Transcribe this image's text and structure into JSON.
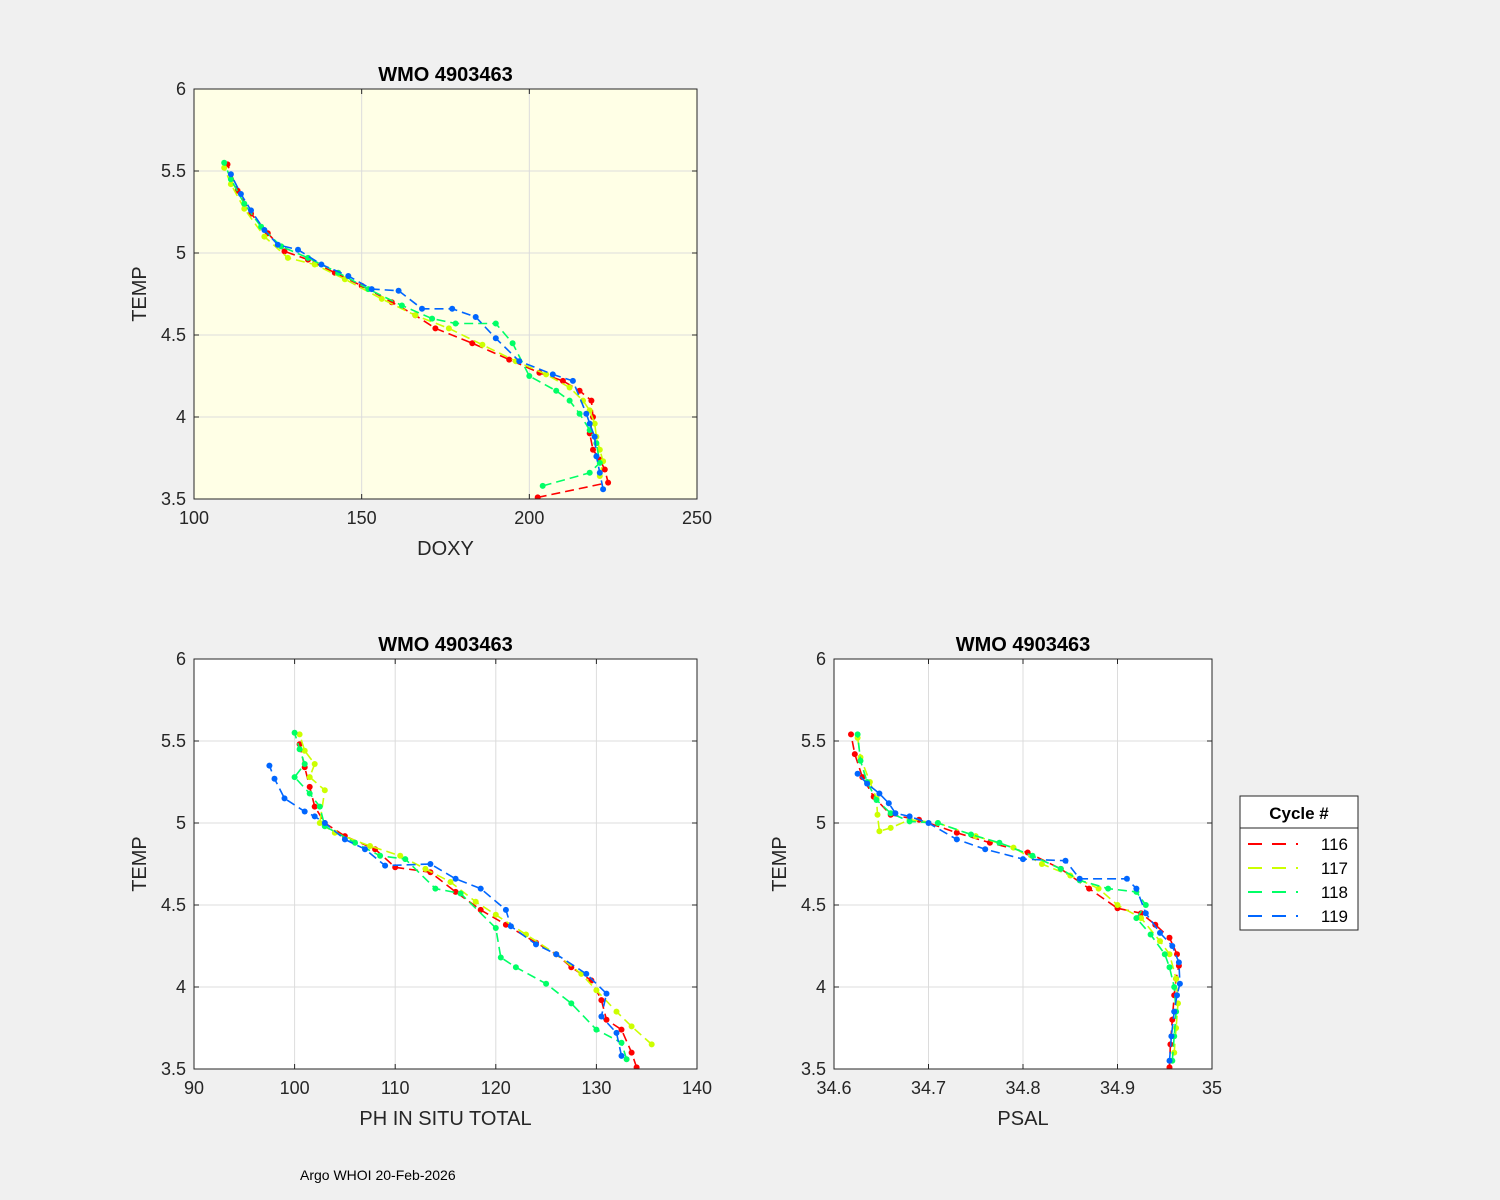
{
  "footer": "Argo WHOI 20-Feb-2026",
  "legend": {
    "title": "Cycle #",
    "entries": [
      {
        "label": "116",
        "color": "#ff0000"
      },
      {
        "label": "117",
        "color": "#ccff00"
      },
      {
        "label": "118",
        "color": "#00ff66"
      },
      {
        "label": "119",
        "color": "#0066ff"
      }
    ]
  },
  "chart_data": [
    {
      "type": "line",
      "title": "WMO 4903463",
      "xlabel": "DOXY",
      "ylabel": "TEMP",
      "xlim": [
        100,
        250
      ],
      "ylim": [
        3.5,
        6
      ],
      "xticks": [
        100,
        150,
        200,
        250
      ],
      "yticks": [
        3.5,
        4,
        4.5,
        5,
        5.5,
        6
      ],
      "grid": true,
      "background": "#ffffe6",
      "series": [
        {
          "name": "116",
          "x": [
            202.5,
            223.5,
            222.5,
            221,
            219,
            218,
            219,
            218.5,
            215,
            210,
            203,
            194,
            183,
            172,
            166,
            159,
            150,
            142,
            134,
            127,
            122,
            117,
            113,
            110
          ],
          "y": [
            3.51,
            3.6,
            3.68,
            3.74,
            3.8,
            3.9,
            4.0,
            4.1,
            4.16,
            4.22,
            4.27,
            4.35,
            4.45,
            4.54,
            4.62,
            4.7,
            4.8,
            4.88,
            4.96,
            5.01,
            5.12,
            5.24,
            5.38,
            5.54
          ]
        },
        {
          "name": "117",
          "x": [
            221,
            222,
            221,
            220,
            219.5,
            218,
            216,
            212,
            205,
            196,
            186,
            176,
            166,
            156,
            145,
            136,
            128,
            121,
            115,
            111,
            109
          ],
          "y": [
            3.64,
            3.73,
            3.8,
            3.88,
            3.96,
            4.04,
            4.1,
            4.18,
            4.26,
            4.34,
            4.44,
            4.54,
            4.62,
            4.72,
            4.84,
            4.93,
            4.97,
            5.1,
            5.27,
            5.42,
            5.52
          ]
        },
        {
          "name": "118",
          "x": [
            204,
            218,
            221,
            220,
            218,
            215,
            212,
            208,
            200,
            195,
            190,
            178,
            171,
            162,
            152,
            143,
            134,
            126,
            120,
            115,
            111,
            109
          ],
          "y": [
            3.58,
            3.66,
            3.72,
            3.84,
            3.92,
            4.02,
            4.1,
            4.16,
            4.25,
            4.45,
            4.57,
            4.57,
            4.6,
            4.68,
            4.78,
            4.88,
            4.97,
            5.04,
            5.16,
            5.3,
            5.45,
            5.55
          ]
        },
        {
          "name": "119",
          "x": [
            222,
            221,
            220,
            219.5,
            218,
            217,
            213,
            207,
            197,
            190,
            184,
            177,
            168,
            161,
            153,
            146,
            138,
            131,
            125,
            121,
            117,
            114,
            111
          ],
          "y": [
            3.56,
            3.66,
            3.76,
            3.88,
            3.96,
            4.02,
            4.22,
            4.26,
            4.34,
            4.48,
            4.61,
            4.66,
            4.66,
            4.77,
            4.78,
            4.86,
            4.93,
            5.02,
            5.05,
            5.14,
            5.26,
            5.36,
            5.48
          ]
        }
      ]
    },
    {
      "type": "line",
      "title": "WMO 4903463",
      "xlabel": "PH IN SITU TOTAL",
      "ylabel": "TEMP",
      "xlim": [
        90,
        140
      ],
      "ylim": [
        3.5,
        6
      ],
      "xticks": [
        90,
        100,
        110,
        120,
        130,
        140
      ],
      "yticks": [
        3.5,
        4,
        4.5,
        5,
        5.5,
        6
      ],
      "grid": true,
      "background": "#ffffff",
      "series": [
        {
          "name": "116",
          "x": [
            134,
            133.5,
            132.5,
            131,
            130.5,
            129.5,
            127.5,
            126,
            124,
            121,
            118.5,
            116,
            113.5,
            110,
            108,
            105,
            103,
            102,
            101.5,
            101,
            100.5
          ],
          "y": [
            3.51,
            3.6,
            3.74,
            3.8,
            3.92,
            4.04,
            4.12,
            4.2,
            4.27,
            4.38,
            4.47,
            4.58,
            4.7,
            4.73,
            4.84,
            4.92,
            5.0,
            5.1,
            5.22,
            5.34,
            5.48
          ]
        },
        {
          "name": "117",
          "x": [
            135.5,
            133.5,
            132,
            130,
            128.5,
            126,
            123,
            120,
            118,
            115.5,
            113,
            110.5,
            107.5,
            104,
            102.5,
            103,
            101.5,
            102,
            101,
            100.5
          ],
          "y": [
            3.65,
            3.76,
            3.85,
            3.98,
            4.08,
            4.2,
            4.32,
            4.44,
            4.52,
            4.64,
            4.72,
            4.8,
            4.86,
            4.94,
            5.0,
            5.2,
            5.28,
            5.36,
            5.44,
            5.54
          ]
        },
        {
          "name": "118",
          "x": [
            133,
            132.5,
            130,
            127.5,
            125,
            122,
            120.5,
            120,
            116.5,
            114,
            111,
            108.5,
            106,
            103,
            102.5,
            101.5,
            100,
            101,
            100.5,
            100
          ],
          "y": [
            3.56,
            3.66,
            3.74,
            3.9,
            4.02,
            4.12,
            4.18,
            4.36,
            4.57,
            4.6,
            4.78,
            4.8,
            4.88,
            4.98,
            5.1,
            5.18,
            5.28,
            5.36,
            5.45,
            5.55
          ]
        },
        {
          "name": "119",
          "x": [
            132.5,
            132,
            130.5,
            131,
            129,
            126,
            124,
            121.5,
            121,
            118.5,
            116,
            113.5,
            109,
            107,
            105,
            103,
            102,
            101,
            99,
            98,
            97.5
          ],
          "y": [
            3.58,
            3.72,
            3.82,
            3.96,
            4.08,
            4.2,
            4.26,
            4.37,
            4.47,
            4.6,
            4.66,
            4.75,
            4.74,
            4.84,
            4.9,
            5.0,
            5.04,
            5.07,
            5.15,
            5.27,
            5.35
          ]
        }
      ]
    },
    {
      "type": "line",
      "title": "WMO 4903463",
      "xlabel": "PSAL",
      "ylabel": "TEMP",
      "xlim": [
        34.6,
        35
      ],
      "ylim": [
        3.5,
        6
      ],
      "xticks": [
        34.6,
        34.7,
        34.8,
        34.9,
        35
      ],
      "yticks": [
        3.5,
        4,
        4.5,
        5,
        5.5,
        6
      ],
      "xtick_labels": [
        "34.6",
        "34.7",
        "34.8",
        "34.9",
        "35"
      ],
      "grid": true,
      "background": "#ffffff",
      "series": [
        {
          "name": "116",
          "x": [
            34.955,
            34.956,
            34.958,
            34.96,
            34.962,
            34.965,
            34.963,
            34.955,
            34.94,
            34.925,
            34.9,
            34.87,
            34.84,
            34.805,
            34.765,
            34.73,
            34.69,
            34.66,
            34.642,
            34.63,
            34.622,
            34.618
          ],
          "y": [
            3.51,
            3.65,
            3.8,
            3.95,
            4.05,
            4.13,
            4.2,
            4.3,
            4.38,
            4.45,
            4.48,
            4.6,
            4.72,
            4.82,
            4.88,
            4.94,
            5.02,
            5.05,
            5.16,
            5.28,
            5.42,
            5.54
          ]
        },
        {
          "name": "117",
          "x": [
            34.96,
            34.962,
            34.964,
            34.962,
            34.955,
            34.945,
            34.925,
            34.9,
            34.88,
            34.85,
            34.82,
            34.79,
            34.75,
            34.71,
            34.68,
            34.66,
            34.648,
            34.646,
            34.645,
            34.638,
            34.628,
            34.625
          ],
          "y": [
            3.6,
            3.75,
            3.9,
            4.05,
            4.2,
            4.28,
            4.42,
            4.5,
            4.6,
            4.68,
            4.75,
            4.85,
            4.92,
            5.0,
            5.02,
            4.97,
            4.95,
            5.05,
            5.15,
            5.25,
            5.4,
            5.52
          ]
        },
        {
          "name": "118",
          "x": [
            34.958,
            34.96,
            34.962,
            34.96,
            34.955,
            34.95,
            34.935,
            34.92,
            34.93,
            34.92,
            34.89,
            34.86,
            34.84,
            34.81,
            34.775,
            34.745,
            34.71,
            34.68,
            34.66,
            34.645,
            34.635,
            34.628,
            34.625
          ],
          "y": [
            3.55,
            3.7,
            3.85,
            4.0,
            4.12,
            4.2,
            4.32,
            4.42,
            4.5,
            4.58,
            4.6,
            4.65,
            4.72,
            4.8,
            4.88,
            4.93,
            5.0,
            5.01,
            5.06,
            5.14,
            5.25,
            5.38,
            5.54
          ]
        },
        {
          "name": "119",
          "x": [
            34.955,
            34.957,
            34.96,
            34.963,
            34.966,
            34.965,
            34.958,
            34.945,
            34.93,
            34.92,
            34.91,
            34.86,
            34.845,
            34.8,
            34.76,
            34.73,
            34.7,
            34.68,
            34.665,
            34.658,
            34.648,
            34.635,
            34.625
          ],
          "y": [
            3.55,
            3.7,
            3.85,
            3.95,
            4.02,
            4.15,
            4.25,
            4.33,
            4.45,
            4.6,
            4.66,
            4.66,
            4.77,
            4.78,
            4.84,
            4.9,
            5.0,
            5.04,
            5.06,
            5.12,
            5.18,
            5.24,
            5.3
          ]
        }
      ]
    }
  ]
}
